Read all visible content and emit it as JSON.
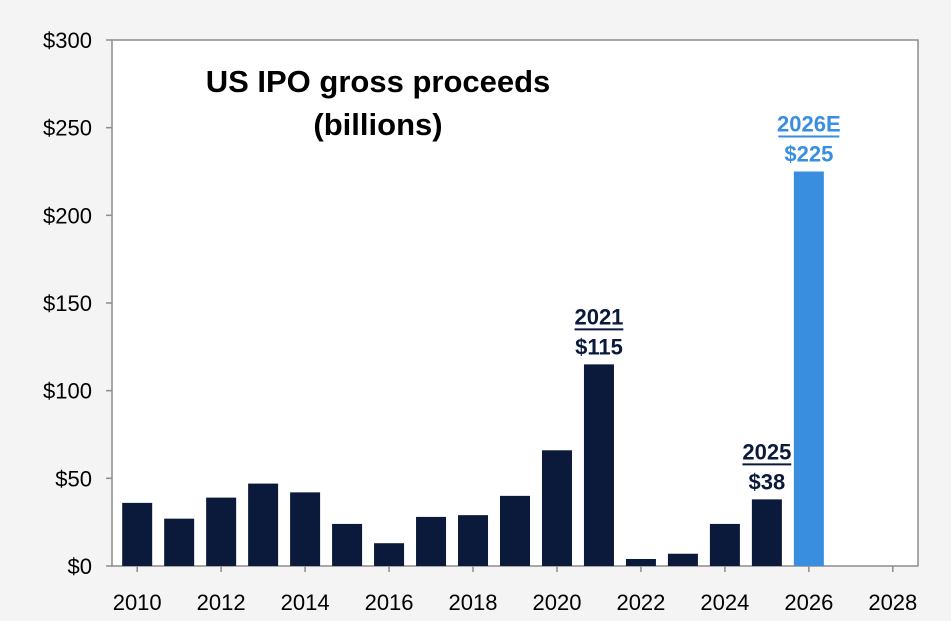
{
  "chart_data": {
    "type": "bar",
    "title": "US IPO gross proceeds",
    "subtitle": "(billions)",
    "xlabel": "",
    "ylabel": "",
    "xlim": [
      2009.4,
      2028.6
    ],
    "ylim": [
      0,
      300
    ],
    "x_ticks": [
      2010,
      2012,
      2014,
      2016,
      2018,
      2020,
      2022,
      2024,
      2026,
      2028
    ],
    "y_ticks": [
      0,
      50,
      100,
      150,
      200,
      250,
      300
    ],
    "y_tick_labels": [
      "$0",
      "$50",
      "$100",
      "$150",
      "$200",
      "$250",
      "$300"
    ],
    "grid": false,
    "legend": "none",
    "series": [
      {
        "color": "#0b1a3a",
        "points": [
          {
            "x": 2010,
            "y": 36
          },
          {
            "x": 2011,
            "y": 27
          },
          {
            "x": 2012,
            "y": 39
          },
          {
            "x": 2013,
            "y": 47
          },
          {
            "x": 2014,
            "y": 42
          },
          {
            "x": 2015,
            "y": 24
          },
          {
            "x": 2016,
            "y": 13
          },
          {
            "x": 2017,
            "y": 28
          },
          {
            "x": 2018,
            "y": 29
          },
          {
            "x": 2019,
            "y": 40
          },
          {
            "x": 2020,
            "y": 66
          },
          {
            "x": 2021,
            "y": 115
          },
          {
            "x": 2022,
            "y": 4
          },
          {
            "x": 2023,
            "y": 7
          },
          {
            "x": 2024,
            "y": 24
          },
          {
            "x": 2025,
            "y": 38
          }
        ]
      },
      {
        "color": "#3a8ee0",
        "points": [
          {
            "x": 2026,
            "y": 225
          }
        ]
      }
    ],
    "annotations": [
      {
        "x": 2021,
        "y": 115,
        "label": "2021",
        "value": "$115",
        "color": "#0b1a3a"
      },
      {
        "x": 2025,
        "y": 38,
        "label": "2025",
        "value": "$38",
        "color": "#0b1a3a"
      },
      {
        "x": 2026,
        "y": 225,
        "label": "2026E",
        "value": "$225",
        "color": "#3a8ee0"
      }
    ]
  }
}
